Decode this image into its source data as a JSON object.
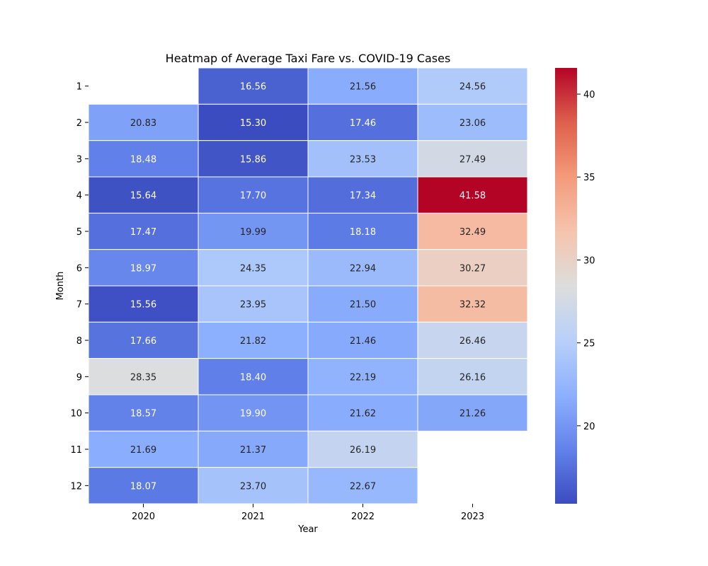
{
  "chart_data": {
    "type": "heatmap",
    "title": "Heatmap of Average Taxi Fare vs. COVID-19 Cases",
    "xlabel": "Year",
    "ylabel": "Month",
    "x_categories": [
      "2020",
      "2021",
      "2022",
      "2023"
    ],
    "y_categories": [
      "1",
      "2",
      "3",
      "4",
      "5",
      "6",
      "7",
      "8",
      "9",
      "10",
      "11",
      "12"
    ],
    "values": [
      [
        null,
        16.56,
        21.56,
        24.56
      ],
      [
        20.83,
        15.3,
        17.46,
        23.06
      ],
      [
        18.48,
        15.86,
        23.53,
        27.49
      ],
      [
        15.64,
        17.7,
        17.34,
        41.58
      ],
      [
        17.47,
        19.99,
        18.18,
        32.49
      ],
      [
        18.97,
        24.35,
        22.94,
        30.27
      ],
      [
        15.56,
        23.95,
        21.5,
        32.32
      ],
      [
        17.66,
        21.82,
        21.46,
        26.46
      ],
      [
        28.35,
        18.4,
        22.19,
        26.16
      ],
      [
        18.57,
        19.9,
        21.62,
        21.26
      ],
      [
        21.69,
        21.37,
        26.19,
        null
      ],
      [
        18.07,
        23.7,
        22.67,
        null
      ]
    ],
    "value_format": "2 decimals",
    "colormap": "coolwarm",
    "color_range": [
      15.3,
      41.58
    ],
    "colorbar_ticks": [
      "20",
      "25",
      "30",
      "35",
      "40"
    ],
    "colorbar": "right",
    "grid": false
  }
}
